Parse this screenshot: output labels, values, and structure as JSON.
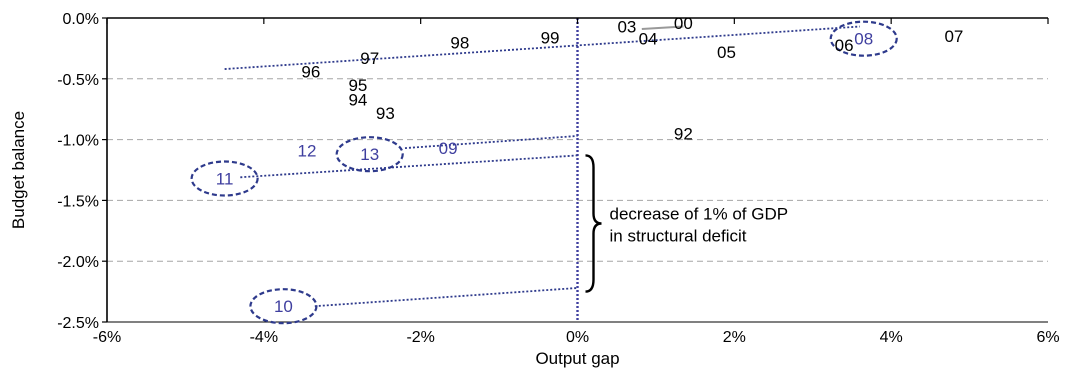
{
  "chart_data": {
    "type": "scatter",
    "title": "",
    "xlabel": "Output gap",
    "ylabel": "Budget balance",
    "xlim": [
      -6,
      6
    ],
    "ylim": [
      -2.5,
      0
    ],
    "grid": "horizontal-dashed",
    "x_ticks": [
      {
        "value": -6,
        "label": "-6%"
      },
      {
        "value": -4,
        "label": "-4%"
      },
      {
        "value": -2,
        "label": "-2%"
      },
      {
        "value": 0,
        "label": "0%"
      },
      {
        "value": 2,
        "label": "2%"
      },
      {
        "value": 4,
        "label": "4%"
      },
      {
        "value": 6,
        "label": "6%"
      }
    ],
    "y_ticks": [
      {
        "value": 0,
        "label": "0.0%"
      },
      {
        "value": -0.5,
        "label": "-0.5%"
      },
      {
        "value": -1,
        "label": "-1.0%"
      },
      {
        "value": -1.5,
        "label": "-1.5%"
      },
      {
        "value": -2,
        "label": "-2.0%"
      },
      {
        "value": -2.5,
        "label": "-2.5%"
      }
    ],
    "points": [
      {
        "label": "92",
        "x": 1.35,
        "y": -0.95,
        "color": "#000000",
        "circled": false
      },
      {
        "label": "93",
        "x": -2.45,
        "y": -0.78,
        "color": "#000000",
        "circled": false
      },
      {
        "label": "94",
        "x": -2.8,
        "y": -0.67,
        "color": "#000000",
        "circled": false
      },
      {
        "label": "95",
        "x": -2.8,
        "y": -0.55,
        "color": "#000000",
        "circled": false
      },
      {
        "label": "96",
        "x": -3.4,
        "y": -0.44,
        "color": "#000000",
        "circled": false
      },
      {
        "label": "97",
        "x": -2.65,
        "y": -0.33,
        "color": "#000000",
        "circled": false
      },
      {
        "label": "98",
        "x": -1.5,
        "y": -0.2,
        "color": "#000000",
        "circled": false
      },
      {
        "label": "99",
        "x": -0.35,
        "y": -0.16,
        "color": "#000000",
        "circled": false
      },
      {
        "label": "00",
        "x": 1.35,
        "y": -0.04,
        "color": "#000000",
        "circled": false
      },
      {
        "label": "03",
        "x": 0.63,
        "y": -0.07,
        "color": "#000000",
        "circled": false
      },
      {
        "label": "04",
        "x": 0.9,
        "y": -0.17,
        "color": "#000000",
        "circled": false
      },
      {
        "label": "05",
        "x": 1.9,
        "y": -0.28,
        "color": "#000000",
        "circled": false
      },
      {
        "label": "06",
        "x": 3.4,
        "y": -0.22,
        "color": "#000000",
        "circled": false
      },
      {
        "label": "07",
        "x": 4.8,
        "y": -0.15,
        "color": "#000000",
        "circled": false
      },
      {
        "label": "08",
        "x": 3.65,
        "y": -0.17,
        "color": "#3f3f9f",
        "circled": true
      },
      {
        "label": "09",
        "x": -1.65,
        "y": -1.07,
        "color": "#3f3f9f",
        "circled": false
      },
      {
        "label": "10",
        "x": -3.75,
        "y": -2.37,
        "color": "#3f3f9f",
        "circled": true
      },
      {
        "label": "11",
        "x": -4.5,
        "y": -1.32,
        "color": "#3f3f9f",
        "circled": true
      },
      {
        "label": "12",
        "x": -3.45,
        "y": -1.09,
        "color": "#3f3f9f",
        "circled": false
      },
      {
        "label": "13",
        "x": -2.65,
        "y": -1.12,
        "color": "#3f3f9f",
        "circled": true
      }
    ],
    "trend_lines": [
      {
        "from": [
          -4.5,
          -0.42
        ],
        "to": [
          3.6,
          -0.07
        ]
      },
      {
        "from": [
          -2.2,
          -1.07
        ],
        "to": [
          0,
          -0.97
        ]
      },
      {
        "from": [
          -4.3,
          -1.31
        ],
        "to": [
          0,
          -1.13
        ]
      },
      {
        "from": [
          -3.35,
          -2.37
        ],
        "to": [
          0,
          -2.22
        ]
      }
    ],
    "segment_03_00": {
      "from": [
        0.82,
        -0.09
      ],
      "to": [
        1.35,
        -0.07
      ],
      "color": "#999999"
    },
    "zero_line": {
      "x": 0,
      "color": "#3f3f9f"
    },
    "annotation": {
      "lines": [
        "decrease of 1% of GDP",
        "in structural deficit"
      ],
      "brace_from": -1.13,
      "brace_to": -2.25
    },
    "colors": {
      "trend": "#2e3a8c",
      "highlight": "#3f3f9f",
      "grid": "#a6a6a6"
    }
  }
}
